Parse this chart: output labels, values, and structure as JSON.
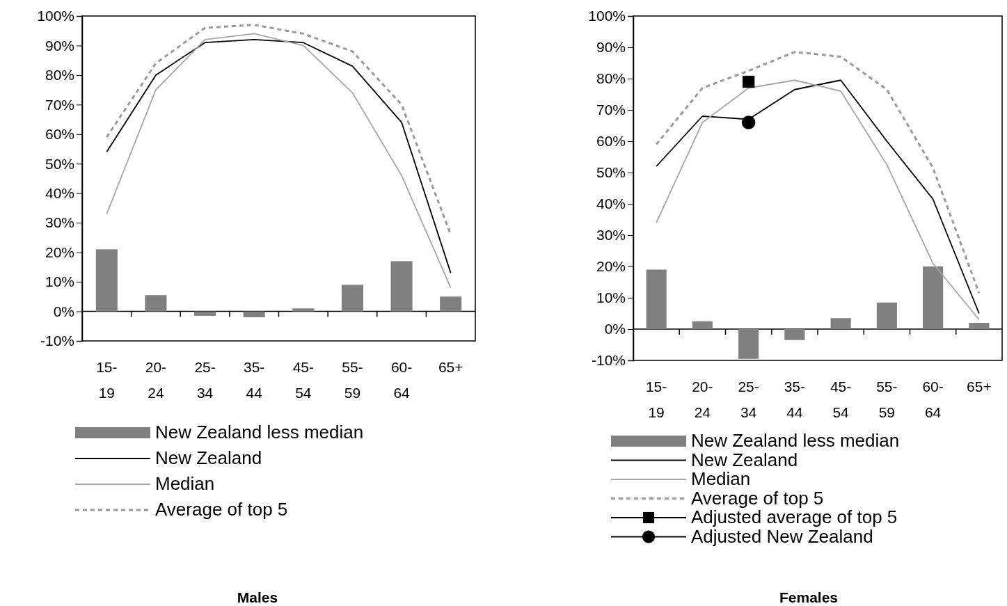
{
  "chart_data": [
    {
      "type": "bar",
      "title": "Males",
      "categories": [
        "15-19",
        "20-24",
        "25-34",
        "35-44",
        "45-54",
        "55-59",
        "60-64",
        "65+"
      ],
      "ylim": [
        -10,
        100
      ],
      "yticks": [
        {
          "value": -10,
          "label": "-10%"
        },
        {
          "value": 0,
          "label": "0%"
        },
        {
          "value": 10,
          "label": "10%"
        },
        {
          "value": 20,
          "label": "20%"
        },
        {
          "value": 30,
          "label": "30%"
        },
        {
          "value": 40,
          "label": "40%"
        },
        {
          "value": 50,
          "label": "50%"
        },
        {
          "value": 60,
          "label": "60%"
        },
        {
          "value": 70,
          "label": "70%"
        },
        {
          "value": 80,
          "label": "80%"
        },
        {
          "value": 90,
          "label": "90%"
        },
        {
          "value": 100,
          "label": "100%"
        }
      ],
      "legend": "bottom",
      "series": [
        {
          "name": "New Zealand less median",
          "color": "#808080",
          "values": [
            21,
            5.5,
            -1.5,
            -2,
            1,
            9,
            17,
            5
          ]
        },
        {
          "name": "New Zealand",
          "type": "line",
          "color": "#000000",
          "line_style": "solid",
          "values": [
            54,
            80,
            91,
            92,
            91,
            83,
            64,
            13
          ]
        },
        {
          "name": "Median",
          "type": "line",
          "color": "#a6a6a6",
          "line_style": "solid",
          "values": [
            33,
            75,
            92,
            94,
            90,
            74,
            46,
            8
          ]
        },
        {
          "name": "Average of top 5",
          "type": "line",
          "color": "#999999",
          "line_style": "dashed",
          "values": [
            59,
            84,
            96,
            97,
            94,
            88,
            70,
            26
          ]
        }
      ]
    },
    {
      "type": "bar",
      "title": "Females",
      "categories": [
        "15-19",
        "20-24",
        "25-34",
        "35-44",
        "45-54",
        "55-59",
        "60-64",
        "65+"
      ],
      "ylim": [
        -10,
        100
      ],
      "yticks": [
        {
          "value": -10,
          "label": "-10%"
        },
        {
          "value": 0,
          "label": "0%"
        },
        {
          "value": 10,
          "label": "10%"
        },
        {
          "value": 20,
          "label": "20%"
        },
        {
          "value": 30,
          "label": "30%"
        },
        {
          "value": 40,
          "label": "40%"
        },
        {
          "value": 50,
          "label": "50%"
        },
        {
          "value": 60,
          "label": "60%"
        },
        {
          "value": 70,
          "label": "70%"
        },
        {
          "value": 80,
          "label": "80%"
        },
        {
          "value": 90,
          "label": "90%"
        },
        {
          "value": 100,
          "label": "100%"
        }
      ],
      "legend": "bottom",
      "series": [
        {
          "name": "New Zealand less median",
          "color": "#808080",
          "values": [
            19,
            2.5,
            -9.5,
            -3.5,
            3.5,
            8.5,
            20,
            2
          ]
        },
        {
          "name": "New Zealand",
          "type": "line",
          "color": "#000000",
          "line_style": "solid",
          "values": [
            52,
            68,
            67,
            76.5,
            79.5,
            60,
            41.5,
            5
          ]
        },
        {
          "name": "Median",
          "type": "line",
          "color": "#a6a6a6",
          "line_style": "solid",
          "values": [
            34,
            66,
            77,
            79.5,
            76,
            52.5,
            21,
            3
          ]
        },
        {
          "name": "Average of top 5",
          "type": "line",
          "color": "#999999",
          "line_style": "dashed",
          "values": [
            59,
            77,
            82.5,
            88.5,
            87,
            76.5,
            51.5,
            11.5
          ]
        },
        {
          "name": "Adjusted average of top 5",
          "type": "scatter",
          "color": "#000000",
          "marker": "square",
          "values": [
            null,
            null,
            79,
            null,
            null,
            null,
            null,
            null
          ]
        },
        {
          "name": "Adjusted New Zealand",
          "type": "scatter",
          "color": "#000000",
          "marker": "circle",
          "values": [
            null,
            null,
            66,
            null,
            null,
            null,
            null,
            null
          ]
        }
      ]
    }
  ]
}
